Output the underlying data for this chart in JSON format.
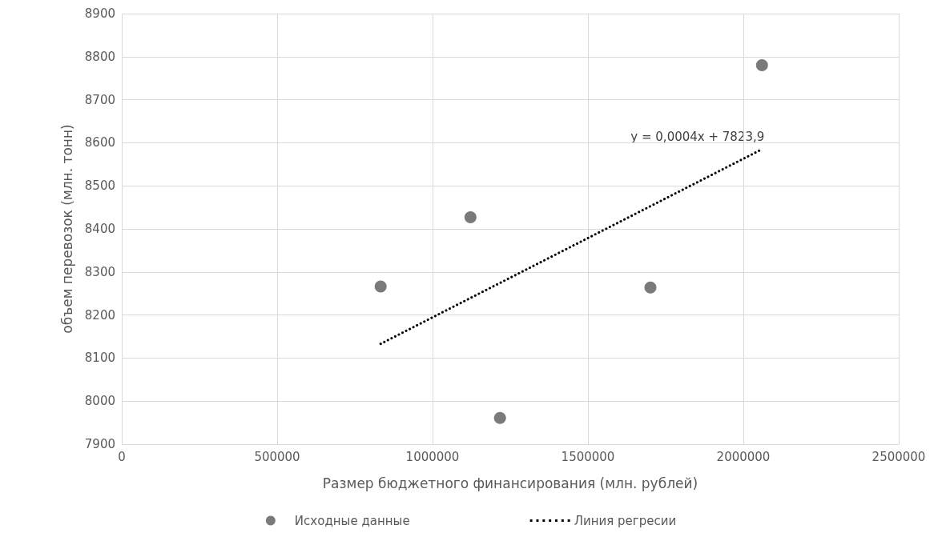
{
  "chart_data": {
    "type": "scatter",
    "xlabel": "Размер бюджетного финансирования (млн. рублей)",
    "ylabel": "объем перевозок (млн. тонн)",
    "xlim": [
      0,
      2500000
    ],
    "xticks": [
      0,
      500000,
      1000000,
      1500000,
      2000000,
      2500000
    ],
    "ylim": [
      7900,
      8900
    ],
    "yticks": [
      7900,
      8000,
      8100,
      8200,
      8300,
      8400,
      8500,
      8600,
      8700,
      8800,
      8900
    ],
    "grid": true,
    "legend": "bottom",
    "marker": "circle",
    "series": [
      {
        "name": "Исходные данные",
        "color": "#595959",
        "x": [
          833000,
          1122000,
          1217000,
          1701000,
          2060000
        ],
        "values": [
          8266,
          8427,
          7961,
          8264,
          8780
        ]
      },
      {
        "name": "Линия регресии",
        "type": "line",
        "color": "#000000",
        "line_style": "dotted",
        "marker": "none",
        "x": [
          833000,
          2060000
        ],
        "values": [
          8133,
          8585
        ]
      }
    ],
    "annotations": [
      "y = 0,0004x + 7823,9"
    ]
  }
}
